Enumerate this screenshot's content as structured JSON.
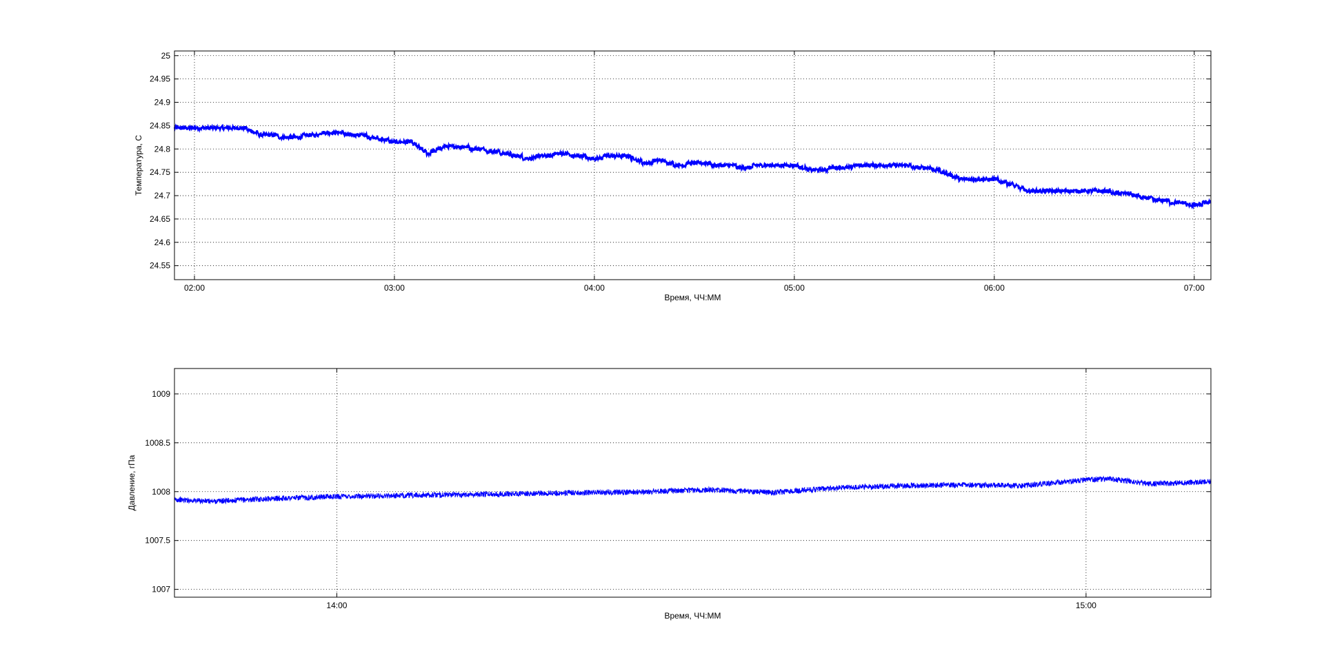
{
  "chart_data": [
    {
      "type": "line",
      "title": "",
      "xlabel": "Время, ЧЧ:ММ",
      "ylabel": "Температура, С",
      "grid": true,
      "line_color": "#0000ff",
      "xlim": [
        "01:54",
        "07:05"
      ],
      "ylim": [
        24.52,
        25.01
      ],
      "xticks": [
        "02:00",
        "03:00",
        "04:00",
        "05:00",
        "06:00",
        "07:00"
      ],
      "yticks": [
        "24.55",
        "24.6",
        "24.65",
        "24.7",
        "24.75",
        "24.8",
        "24.85",
        "24.9",
        "24.95",
        "25"
      ],
      "series": [
        {
          "x": [
            "01:54",
            "02:05",
            "02:10",
            "02:15",
            "02:20",
            "02:30",
            "02:40",
            "02:50",
            "03:00",
            "03:05",
            "03:10",
            "03:15",
            "03:20",
            "03:30",
            "03:40",
            "03:50",
            "04:00",
            "04:05",
            "04:10",
            "04:15",
            "04:20",
            "04:25",
            "04:30",
            "04:40",
            "04:45",
            "04:50",
            "05:00",
            "05:05",
            "05:15",
            "05:20",
            "05:30",
            "05:40",
            "05:45",
            "05:50",
            "06:00",
            "06:05",
            "06:10",
            "06:20",
            "06:30",
            "06:40",
            "06:45",
            "06:50",
            "07:00",
            "07:05"
          ],
          "y": [
            24.845,
            24.845,
            24.845,
            24.845,
            24.83,
            24.825,
            24.835,
            24.83,
            24.815,
            24.815,
            24.79,
            24.805,
            24.805,
            24.795,
            24.78,
            24.79,
            24.78,
            24.785,
            24.785,
            24.77,
            24.775,
            24.765,
            24.77,
            24.765,
            24.76,
            24.765,
            24.765,
            24.755,
            24.76,
            24.765,
            24.765,
            24.76,
            24.75,
            24.735,
            24.735,
            24.725,
            24.71,
            24.71,
            24.71,
            24.705,
            24.695,
            24.69,
            24.68,
            24.685
          ]
        }
      ]
    },
    {
      "type": "line",
      "title": "",
      "xlabel": "Время, ЧЧ:ММ",
      "ylabel": "Давление, гПа",
      "grid": true,
      "line_color": "#0000ff",
      "xlim": [
        "13:47",
        "15:10"
      ],
      "ylim": [
        1006.92,
        1009.26
      ],
      "xticks": [
        "14:00",
        "15:00"
      ],
      "yticks": [
        "1007",
        "1007.5",
        "1008",
        "1008.5",
        "1009"
      ],
      "series": [
        {
          "x": [
            "13:47",
            "13:50",
            "13:55",
            "14:00",
            "14:05",
            "14:10",
            "14:15",
            "14:20",
            "14:25",
            "14:30",
            "14:35",
            "14:40",
            "14:45",
            "14:50",
            "14:55",
            "15:00",
            "15:02",
            "15:05",
            "15:10"
          ],
          "y": [
            1007.92,
            1007.9,
            1007.93,
            1007.95,
            1007.96,
            1007.97,
            1007.98,
            1007.99,
            1008.0,
            1008.02,
            1007.99,
            1008.04,
            1008.06,
            1008.07,
            1008.06,
            1008.12,
            1008.13,
            1008.08,
            1008.1
          ]
        }
      ]
    }
  ]
}
